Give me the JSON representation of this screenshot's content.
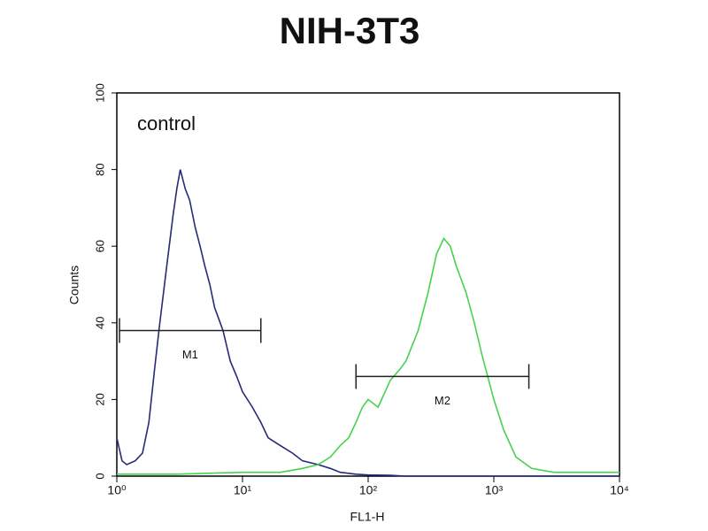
{
  "chart_data": {
    "type": "histogram-log",
    "title": "NIH-3T3",
    "annotation": "control",
    "xlabel": "FL1-H",
    "ylabel": "Counts",
    "log_x": true,
    "xlim": [
      1,
      10000
    ],
    "xticks": [
      {
        "value": 1,
        "label": "10⁰"
      },
      {
        "value": 10,
        "label": "10¹"
      },
      {
        "value": 100,
        "label": "10²"
      },
      {
        "value": 1000,
        "label": "10³"
      },
      {
        "value": 10000,
        "label": "10⁴"
      }
    ],
    "ylim": [
      0,
      100
    ],
    "yticks": [
      0,
      20,
      40,
      60,
      80,
      100
    ],
    "series": [
      {
        "color": "#262a78",
        "x": [
          1,
          1.1,
          1.2,
          1.4,
          1.6,
          1.8,
          2,
          2.2,
          2.5,
          2.8,
          3,
          3.2,
          3.5,
          3.8,
          4.2,
          4.6,
          5,
          5.5,
          6,
          7,
          8,
          9,
          10,
          12,
          14,
          16,
          20,
          25,
          30,
          40,
          50,
          60,
          80,
          100,
          150,
          200,
          300,
          500,
          1000,
          3000,
          10000
        ],
        "values": [
          10,
          4,
          3,
          4,
          6,
          14,
          28,
          40,
          55,
          68,
          75,
          80,
          75,
          72,
          65,
          60,
          55,
          50,
          44,
          38,
          30,
          26,
          22,
          18,
          14,
          10,
          8,
          6,
          4,
          3,
          2,
          1,
          0.5,
          0.3,
          0.2,
          0,
          0,
          0,
          0,
          0,
          0
        ]
      },
      {
        "color": "#46d24c",
        "x": [
          1,
          3,
          10,
          20,
          30,
          40,
          50,
          60,
          70,
          80,
          90,
          100,
          120,
          150,
          180,
          200,
          250,
          300,
          350,
          400,
          450,
          500,
          600,
          700,
          800,
          1000,
          1200,
          1500,
          2000,
          3000,
          5000,
          10000
        ],
        "values": [
          0.5,
          0.5,
          1,
          1,
          2,
          3,
          5,
          8,
          10,
          14,
          18,
          20,
          18,
          25,
          28,
          30,
          38,
          48,
          58,
          62,
          60,
          55,
          48,
          40,
          32,
          20,
          12,
          5,
          2,
          1,
          1,
          1
        ]
      }
    ],
    "markers": [
      {
        "label": "M1",
        "x": [
          1.05,
          14
        ],
        "y": 38
      },
      {
        "label": "M2",
        "x": [
          80,
          1900
        ],
        "y": 26
      }
    ]
  }
}
